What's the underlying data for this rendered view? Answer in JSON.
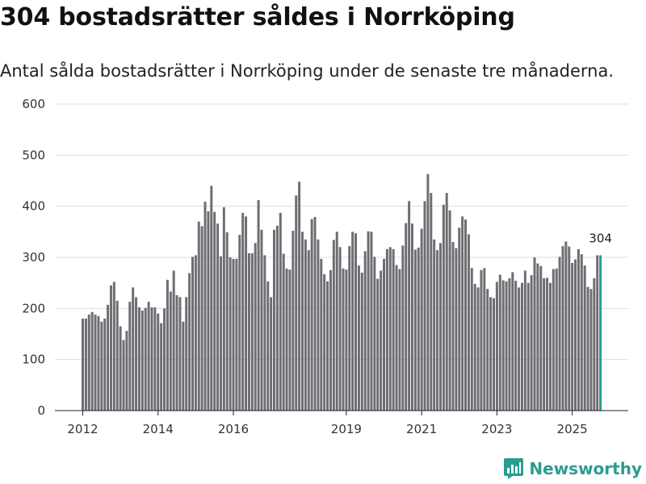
{
  "title": "304 bostadsrätter såldes i Norrköping",
  "subtitle": "Antal sålda bostadsrätter i Norrköping under de senaste tre månaderna.",
  "brand": {
    "name": "Newsworthy",
    "icon": "newsworthy-logo-icon",
    "color": "#2a9d8f"
  },
  "chart_data": {
    "type": "bar",
    "title": "304 bostadsrätter såldes i Norrköping",
    "xlabel": "",
    "ylabel": "",
    "ylim": [
      0,
      600
    ],
    "yticks": [
      "0",
      "100",
      "200",
      "300",
      "400",
      "500",
      "600"
    ],
    "xticks": [
      "2012",
      "2014",
      "2016",
      "2019",
      "2021",
      "2023",
      "2025"
    ],
    "grid": true,
    "bar_color": "#6e6d73",
    "highlight_color": "#2a9d8f",
    "annotation": "304",
    "values": [
      180,
      180,
      188,
      193,
      188,
      185,
      174,
      180,
      207,
      245,
      252,
      215,
      165,
      138,
      156,
      213,
      241,
      222,
      202,
      196,
      201,
      213,
      202,
      202,
      190,
      171,
      200,
      256,
      233,
      274,
      226,
      222,
      174,
      222,
      269,
      301,
      304,
      370,
      361,
      409,
      390,
      440,
      389,
      366,
      302,
      398,
      349,
      300,
      297,
      297,
      344,
      387,
      380,
      308,
      308,
      328,
      412,
      354,
      304,
      253,
      222,
      354,
      362,
      387,
      307,
      278,
      276,
      352,
      421,
      448,
      350,
      335,
      314,
      375,
      379,
      335,
      297,
      267,
      253,
      275,
      334,
      350,
      320,
      278,
      276,
      322,
      350,
      347,
      284,
      270,
      312,
      351,
      350,
      301,
      258,
      274,
      297,
      316,
      320,
      316,
      285,
      277,
      323,
      367,
      410,
      366,
      315,
      319,
      356,
      410,
      463,
      426,
      335,
      314,
      328,
      403,
      426,
      392,
      330,
      318,
      358,
      380,
      374,
      345,
      279,
      248,
      241,
      275,
      279,
      238,
      222,
      220,
      252,
      266,
      255,
      253,
      259,
      271,
      254,
      241,
      250,
      274,
      250,
      265,
      300,
      288,
      283,
      259,
      260,
      250,
      277,
      278,
      301,
      322,
      331,
      321,
      289,
      296,
      316,
      306,
      284,
      242,
      238,
      259,
      304,
      304
    ]
  }
}
